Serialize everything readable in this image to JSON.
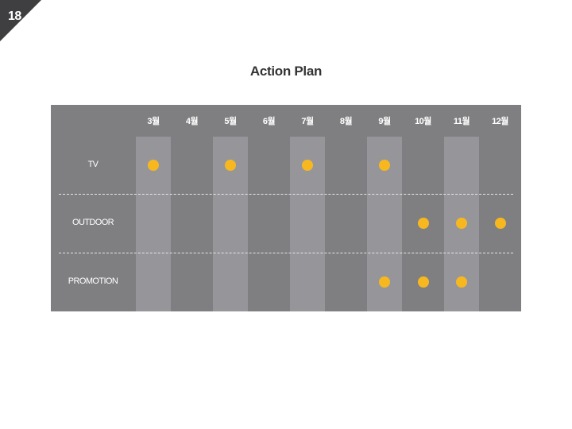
{
  "page": {
    "number": "18"
  },
  "title": "Action Plan",
  "months": [
    "3월",
    "4월",
    "5월",
    "6월",
    "7월",
    "8월",
    "9월",
    "10월",
    "11월",
    "12월"
  ],
  "highlighted_months": [
    0,
    2,
    4,
    6,
    8
  ],
  "rows": [
    {
      "label": "TV",
      "active": [
        0,
        2,
        4,
        6
      ]
    },
    {
      "label": "OUTDOOR",
      "active": [
        7,
        8,
        9
      ]
    },
    {
      "label": "PROMOTION",
      "active": [
        6,
        7,
        8
      ]
    }
  ],
  "colors": {
    "panel": "#7f7f82",
    "band": "#96969a",
    "dot": "#f7b81f",
    "corner": "#3f3f41"
  }
}
